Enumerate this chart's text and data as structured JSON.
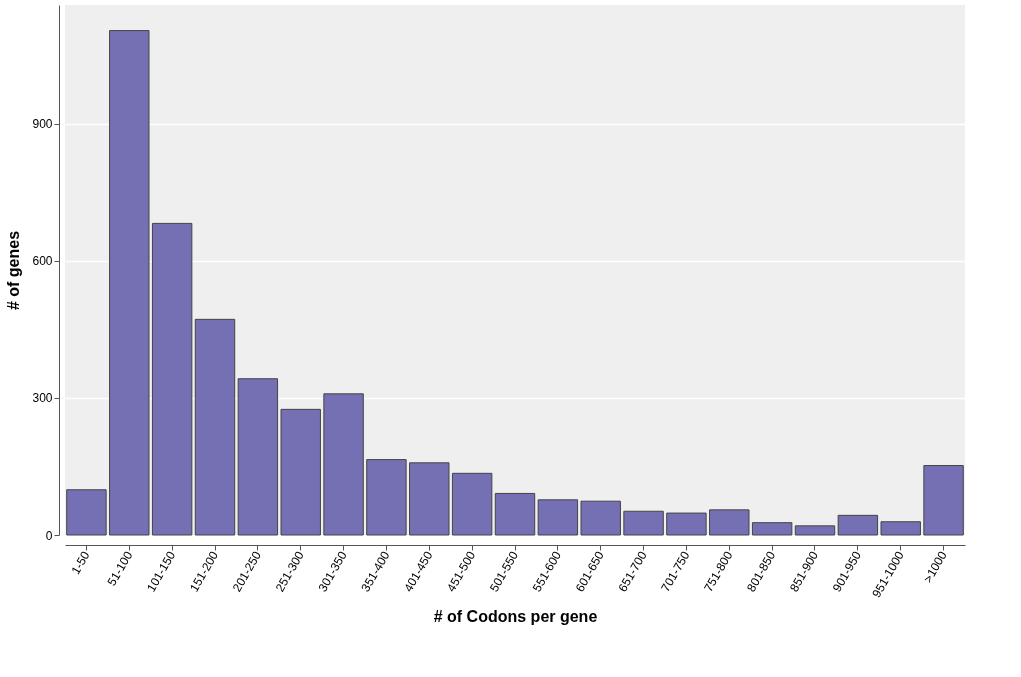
{
  "chart_data": {
    "type": "bar",
    "xlabel": "# of Codons per gene",
    "ylabel": "# of genes",
    "categories": [
      "1-50",
      "51-100",
      "101-150",
      "151-200",
      "201-250",
      "251-300",
      "301-350",
      "351-400",
      "401-450",
      "451-500",
      "501-550",
      "551-600",
      "601-650",
      "651-700",
      "701-750",
      "751-800",
      "801-850",
      "851-900",
      "901-950",
      "951-1000",
      ">1000"
    ],
    "values": [
      99,
      1104,
      682,
      472,
      342,
      275,
      309,
      165,
      158,
      135,
      91,
      77,
      74,
      52,
      48,
      55,
      27,
      20,
      43,
      29,
      152
    ],
    "color": "#7570b3",
    "ylim": [
      0,
      1160
    ],
    "yticks": [
      0,
      300,
      600,
      900
    ],
    "grid": "y"
  }
}
